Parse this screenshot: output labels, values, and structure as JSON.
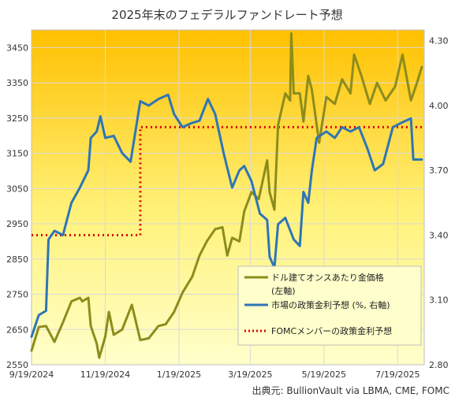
{
  "chart_data": {
    "type": "line",
    "title": "2025年末のフェデラルファンドレート予想",
    "source": "出典元: BullionVault  via LBMA, CME, FOMC",
    "x_ticks": [
      "9/19/2024",
      "11/19/2024",
      "1/19/2025",
      "3/19/2025",
      "5/19/2025",
      "7/19/2025"
    ],
    "x_range": [
      "2024-09-19",
      "2025-08-10"
    ],
    "y_left": {
      "min": 2550,
      "max": 3500,
      "ticks": [
        2550,
        2650,
        2750,
        2850,
        2950,
        3050,
        3150,
        3250,
        3350,
        3450
      ]
    },
    "y_right": {
      "min": 2.8,
      "max": 4.35,
      "ticks": [
        "2.80",
        "3.10",
        "3.40",
        "3.70",
        "4.00",
        "4.30"
      ]
    },
    "grid": true,
    "legend_position": "bottom-right",
    "colors": {
      "gold": "#8c8c1c",
      "policy": "#2e75b6",
      "fomc": "#e00000",
      "bg_top": "#ffc000",
      "bg_bottom": "#ffffcc",
      "legend_bg": "#ffffcc"
    },
    "series": [
      {
        "name": "ドル建てオンスあたり金価格",
        "name_line2": "(左軸)",
        "axis": "left",
        "style": "solid",
        "points": [
          [
            "2024-09-19",
            2590
          ],
          [
            "2024-09-25",
            2657
          ],
          [
            "2024-10-01",
            2660
          ],
          [
            "2024-10-08",
            2615
          ],
          [
            "2024-10-15",
            2670
          ],
          [
            "2024-10-22",
            2730
          ],
          [
            "2024-10-29",
            2740
          ],
          [
            "2024-10-31",
            2730
          ],
          [
            "2024-11-05",
            2740
          ],
          [
            "2024-11-07",
            2660
          ],
          [
            "2024-11-12",
            2610
          ],
          [
            "2024-11-14",
            2570
          ],
          [
            "2024-11-19",
            2630
          ],
          [
            "2024-11-22",
            2700
          ],
          [
            "2024-11-26",
            2635
          ],
          [
            "2024-12-03",
            2650
          ],
          [
            "2024-12-11",
            2720
          ],
          [
            "2024-12-18",
            2620
          ],
          [
            "2024-12-25",
            2625
          ],
          [
            "2025-01-02",
            2660
          ],
          [
            "2025-01-08",
            2665
          ],
          [
            "2025-01-15",
            2700
          ],
          [
            "2025-01-22",
            2755
          ],
          [
            "2025-01-30",
            2800
          ],
          [
            "2025-02-05",
            2860
          ],
          [
            "2025-02-11",
            2900
          ],
          [
            "2025-02-18",
            2935
          ],
          [
            "2025-02-24",
            2940
          ],
          [
            "2025-02-28",
            2860
          ],
          [
            "2025-03-04",
            2910
          ],
          [
            "2025-03-10",
            2900
          ],
          [
            "2025-03-14",
            2985
          ],
          [
            "2025-03-20",
            3040
          ],
          [
            "2025-03-26",
            3020
          ],
          [
            "2025-04-02",
            3130
          ],
          [
            "2025-04-04",
            3040
          ],
          [
            "2025-04-08",
            2990
          ],
          [
            "2025-04-11",
            3230
          ],
          [
            "2025-04-17",
            3320
          ],
          [
            "2025-04-21",
            3300
          ],
          [
            "2025-04-22",
            3490
          ],
          [
            "2025-04-24",
            3320
          ],
          [
            "2025-04-29",
            3320
          ],
          [
            "2025-05-02",
            3240
          ],
          [
            "2025-05-06",
            3370
          ],
          [
            "2025-05-09",
            3330
          ],
          [
            "2025-05-15",
            3180
          ],
          [
            "2025-05-21",
            3310
          ],
          [
            "2025-05-28",
            3290
          ],
          [
            "2025-06-03",
            3360
          ],
          [
            "2025-06-10",
            3320
          ],
          [
            "2025-06-13",
            3430
          ],
          [
            "2025-06-19",
            3370
          ],
          [
            "2025-06-26",
            3290
          ],
          [
            "2025-07-02",
            3350
          ],
          [
            "2025-07-09",
            3300
          ],
          [
            "2025-07-17",
            3340
          ],
          [
            "2025-07-23",
            3430
          ],
          [
            "2025-07-30",
            3300
          ],
          [
            "2025-08-04",
            3350
          ],
          [
            "2025-08-08",
            3395
          ]
        ]
      },
      {
        "name": "市場の政策金利予想 (%, 右軸)",
        "axis": "right",
        "style": "solid",
        "points": [
          [
            "2024-09-19",
            2.93
          ],
          [
            "2024-09-25",
            3.03
          ],
          [
            "2024-10-01",
            3.05
          ],
          [
            "2024-10-03",
            3.38
          ],
          [
            "2024-10-08",
            3.42
          ],
          [
            "2024-10-15",
            3.4
          ],
          [
            "2024-10-22",
            3.55
          ],
          [
            "2024-10-29",
            3.62
          ],
          [
            "2024-11-05",
            3.7
          ],
          [
            "2024-11-07",
            3.85
          ],
          [
            "2024-11-12",
            3.88
          ],
          [
            "2024-11-15",
            3.95
          ],
          [
            "2024-11-19",
            3.85
          ],
          [
            "2024-11-26",
            3.86
          ],
          [
            "2024-12-03",
            3.78
          ],
          [
            "2024-12-10",
            3.74
          ],
          [
            "2024-12-18",
            4.02
          ],
          [
            "2024-12-25",
            4.0
          ],
          [
            "2025-01-02",
            4.03
          ],
          [
            "2025-01-10",
            4.05
          ],
          [
            "2025-01-15",
            3.96
          ],
          [
            "2025-01-22",
            3.9
          ],
          [
            "2025-01-30",
            3.92
          ],
          [
            "2025-02-05",
            3.93
          ],
          [
            "2025-02-12",
            4.03
          ],
          [
            "2025-02-18",
            3.96
          ],
          [
            "2025-02-25",
            3.78
          ],
          [
            "2025-03-04",
            3.62
          ],
          [
            "2025-03-10",
            3.7
          ],
          [
            "2025-03-14",
            3.72
          ],
          [
            "2025-03-20",
            3.65
          ],
          [
            "2025-03-27",
            3.5
          ],
          [
            "2025-04-02",
            3.47
          ],
          [
            "2025-04-04",
            3.3
          ],
          [
            "2025-04-08",
            3.25
          ],
          [
            "2025-04-11",
            3.45
          ],
          [
            "2025-04-17",
            3.48
          ],
          [
            "2025-04-24",
            3.38
          ],
          [
            "2025-04-29",
            3.35
          ],
          [
            "2025-05-02",
            3.6
          ],
          [
            "2025-05-06",
            3.55
          ],
          [
            "2025-05-09",
            3.7
          ],
          [
            "2025-05-13",
            3.85
          ],
          [
            "2025-05-21",
            3.88
          ],
          [
            "2025-05-28",
            3.85
          ],
          [
            "2025-06-03",
            3.9
          ],
          [
            "2025-06-10",
            3.88
          ],
          [
            "2025-06-17",
            3.9
          ],
          [
            "2025-06-24",
            3.8
          ],
          [
            "2025-06-30",
            3.7
          ],
          [
            "2025-07-07",
            3.73
          ],
          [
            "2025-07-15",
            3.9
          ],
          [
            "2025-07-22",
            3.92
          ],
          [
            "2025-07-30",
            3.94
          ],
          [
            "2025-08-01",
            3.75
          ],
          [
            "2025-08-08",
            3.75
          ]
        ]
      },
      {
        "name": "FOMCメンバーの政策金利予想",
        "axis": "right",
        "style": "dotted",
        "points": [
          [
            "2024-09-19",
            3.4
          ],
          [
            "2024-12-18",
            3.4
          ],
          [
            "2024-12-18",
            3.9
          ],
          [
            "2025-08-10",
            3.9
          ]
        ]
      }
    ]
  }
}
